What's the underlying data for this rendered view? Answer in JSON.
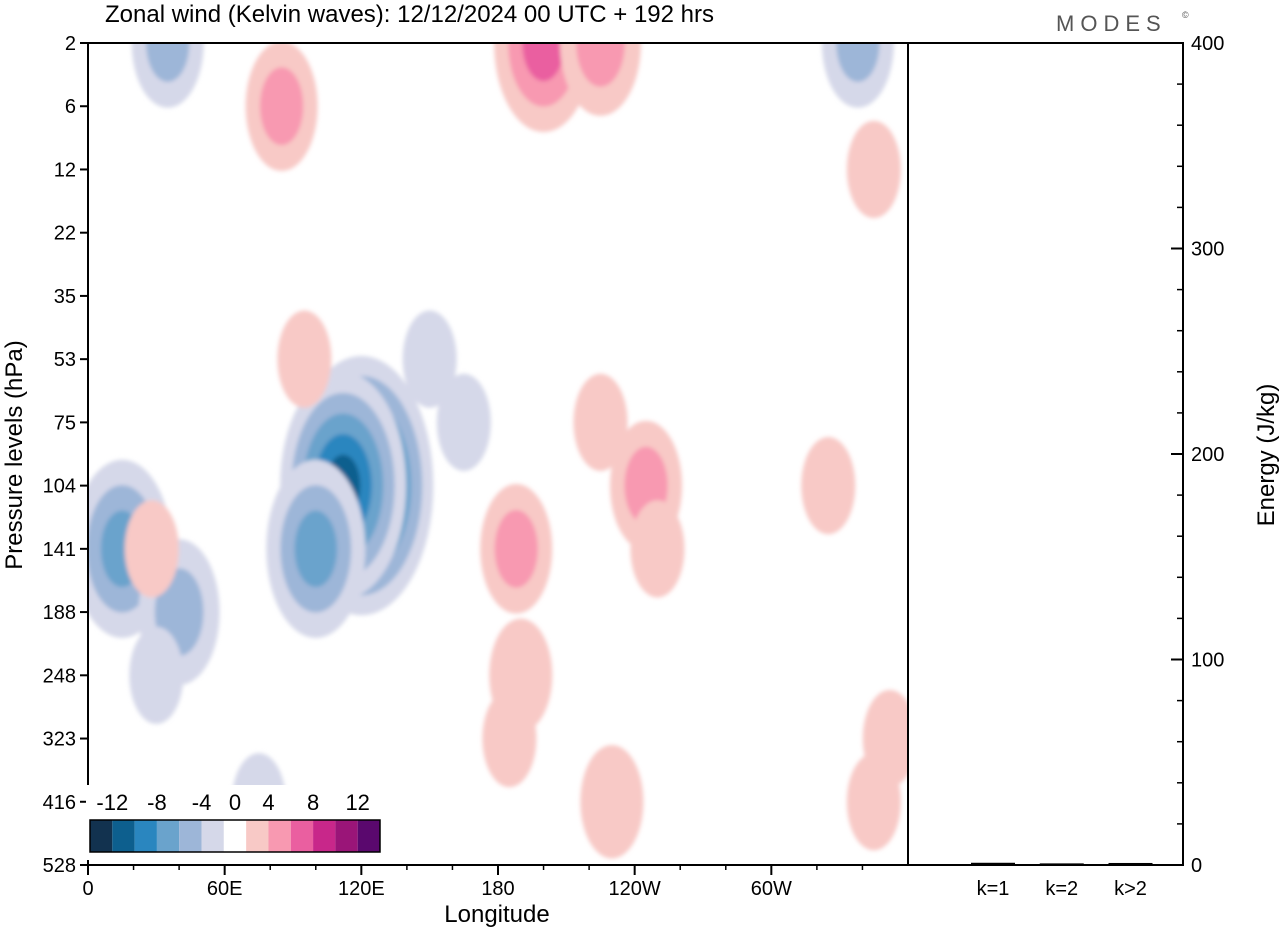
{
  "chart_data": [
    {
      "type": "heatmap",
      "title": "Zonal wind (Kelvin waves):  12/12/2024  00 UTC  + 192 hrs",
      "xlabel": "Longitude",
      "ylabel": "Pressure levels (hPa)",
      "x_ticks": [
        "0",
        "60E",
        "120E",
        "180",
        "120W",
        "60W"
      ],
      "x_tick_values": [
        0,
        60,
        120,
        180,
        240,
        300
      ],
      "xlim": [
        0,
        360
      ],
      "y_ticks": [
        "2",
        "6",
        "12",
        "22",
        "35",
        "53",
        "75",
        "104",
        "141",
        "188",
        "248",
        "323",
        "416",
        "528"
      ],
      "y_scale": "pressure levels (top = 2 hPa, bottom = 528 hPa)",
      "colorbar": {
        "tick_labels": [
          "-12",
          "-8",
          "-4",
          "0",
          "4",
          "8",
          "12"
        ],
        "levels": [
          -14,
          -12,
          -10,
          -8,
          -6,
          -4,
          -2,
          2,
          4,
          6,
          8,
          10,
          12,
          14
        ],
        "colors": [
          "#12324f",
          "#0d5f8e",
          "#2a86bf",
          "#6aa3cc",
          "#9db6d8",
          "#d5d8e9",
          "#ffffff",
          "#f8c9c6",
          "#f899b1",
          "#ea5fa0",
          "#c8278a",
          "#9a1578",
          "#5a086e"
        ]
      },
      "anomalies": [
        {
          "lon": 120,
          "level": "104",
          "value": -13
        },
        {
          "lon": 112,
          "level": "104",
          "value": -11
        },
        {
          "lon": 100,
          "level": "141",
          "value": -8
        },
        {
          "lon": 15,
          "level": "141",
          "value": -8
        },
        {
          "lon": 40,
          "level": "188",
          "value": -6
        },
        {
          "lon": 30,
          "level": "248",
          "value": -3
        },
        {
          "lon": 75,
          "level": "416",
          "value": -3
        },
        {
          "lon": 150,
          "level": "53",
          "value": -3
        },
        {
          "lon": 165,
          "level": "75",
          "value": -3
        },
        {
          "lon": 35,
          "level": "2",
          "value": -5
        },
        {
          "lon": 338,
          "level": "2",
          "value": -5
        },
        {
          "lon": 188,
          "level": "141",
          "value": 5
        },
        {
          "lon": 190,
          "level": "248",
          "value": 4
        },
        {
          "lon": 185,
          "level": "323",
          "value": 3
        },
        {
          "lon": 245,
          "level": "104",
          "value": 5
        },
        {
          "lon": 225,
          "level": "75",
          "value": 3
        },
        {
          "lon": 250,
          "level": "141",
          "value": 3
        },
        {
          "lon": 325,
          "level": "104",
          "value": 3
        },
        {
          "lon": 95,
          "level": "53",
          "value": 3
        },
        {
          "lon": 85,
          "level": "6",
          "value": 5
        },
        {
          "lon": 200,
          "level": "2",
          "value": 8
        },
        {
          "lon": 225,
          "level": "2",
          "value": 6
        },
        {
          "lon": 345,
          "level": "12",
          "value": 3
        },
        {
          "lon": 230,
          "level": "416",
          "value": 4
        },
        {
          "lon": 352,
          "level": "323",
          "value": 3
        },
        {
          "lon": 28,
          "level": "141",
          "value": 3
        },
        {
          "lon": 345,
          "level": "416",
          "value": 3
        }
      ]
    },
    {
      "type": "bar",
      "ylabel": "Energy (J/kg)",
      "categories": [
        "k=1",
        "k=2",
        "k>2"
      ],
      "values": [
        0.6,
        0.3,
        0.5
      ],
      "ylim": [
        0,
        400
      ],
      "y_ticks": [
        "0",
        "100",
        "200",
        "300",
        "400"
      ]
    }
  ],
  "brand": "MODES",
  "brand_mark": "©"
}
